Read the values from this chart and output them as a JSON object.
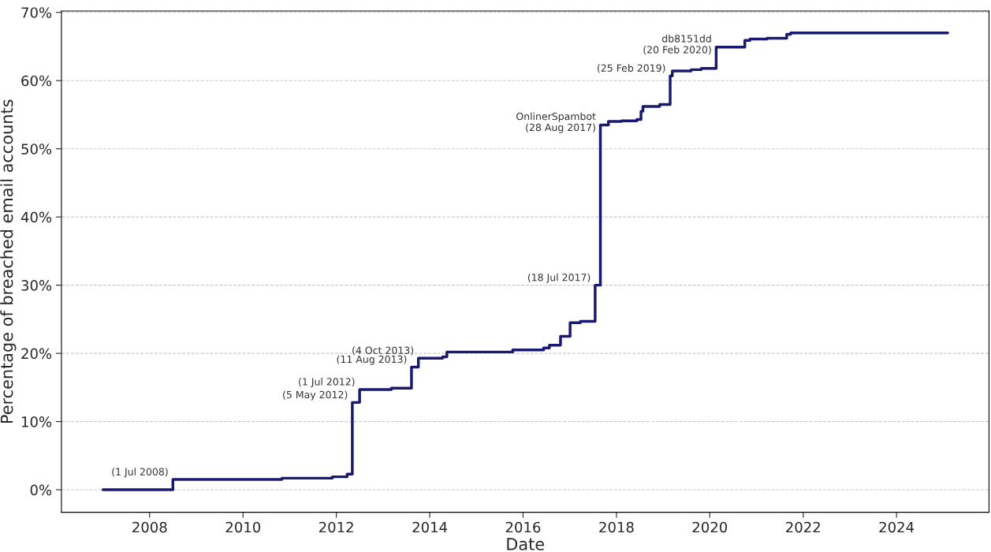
{
  "chart_data": {
    "type": "step",
    "xlabel": "Date",
    "ylabel": "Percentage of breached email accounts",
    "x": [
      "2007-01-01",
      "2008-07-01",
      "2010-11-01",
      "2011-12-01",
      "2012-03-25",
      "2012-05-05",
      "2012-07-01",
      "2013-03-07",
      "2013-08-11",
      "2013-10-04",
      "2014-04-12",
      "2014-05-15",
      "2015-10-12",
      "2016-06-10",
      "2016-07-25",
      "2016-10-20",
      "2017-01-03",
      "2017-03-25",
      "2017-07-18",
      "2017-08-28",
      "2017-10-30",
      "2018-02-10",
      "2018-06-10",
      "2018-07-12",
      "2018-07-27",
      "2018-12-05",
      "2019-02-25",
      "2019-03-14",
      "2019-08-08",
      "2019-10-27",
      "2020-02-20",
      "2020-10-01",
      "2020-11-10",
      "2021-03-25",
      "2021-08-25",
      "2021-09-25",
      "2025-02-05"
    ],
    "series": [
      {
        "color": "#191970",
        "values": [
          0,
          1.5,
          1.7,
          1.9,
          2.3,
          12.8,
          14.7,
          14.9,
          18.0,
          19.3,
          19.5,
          20.2,
          20.5,
          20.8,
          21.2,
          22.5,
          24.5,
          24.7,
          30.0,
          53.5,
          54.0,
          54.1,
          54.3,
          55.5,
          56.2,
          56.5,
          60.7,
          61.4,
          61.6,
          61.8,
          64.9,
          65.9,
          66.1,
          66.2,
          66.8,
          67.0,
          67.0
        ]
      }
    ],
    "annotations": [
      {
        "text": "(1 Jul 2008)",
        "x": "2008-07-01",
        "y": 1.5
      },
      {
        "text": "(5 May 2012)",
        "x": "2012-05-05",
        "y": 12.8
      },
      {
        "text": "(1 Jul 2012)",
        "x": "2012-07-01",
        "y": 14.7
      },
      {
        "text": "(11 Aug 2013)",
        "x": "2013-08-11",
        "y": 18.0
      },
      {
        "text": "(4 Oct 2013)",
        "x": "2013-10-04",
        "y": 19.3
      },
      {
        "text": "(18 Jul 2017)",
        "x": "2017-07-18",
        "y": 30.0
      },
      {
        "text": "OnlinerSpambot\n(28 Aug 2017)",
        "x": "2017-08-28",
        "y": 53.5
      },
      {
        "text": "(25 Feb 2019)",
        "x": "2019-02-25",
        "y": 60.7
      },
      {
        "text": "db8151dd\n(20 Feb 2020)",
        "x": "2020-02-20",
        "y": 64.9
      }
    ],
    "xlim": [
      "2006-02-10",
      "2025-12-25"
    ],
    "xticks": [
      "2008",
      "2010",
      "2012",
      "2014",
      "2016",
      "2018",
      "2020",
      "2022",
      "2024"
    ],
    "ylim": [
      -3.3,
      70.2
    ],
    "yticks": [
      {
        "value": 0,
        "label": "0%"
      },
      {
        "value": 10,
        "label": "10%"
      },
      {
        "value": 20,
        "label": "20%"
      },
      {
        "value": 30,
        "label": "30%"
      },
      {
        "value": 40,
        "label": "40%"
      },
      {
        "value": 50,
        "label": "50%"
      },
      {
        "value": 60,
        "label": "60%"
      },
      {
        "value": 70,
        "label": "70%"
      }
    ],
    "grid": "y",
    "legend": false,
    "line_style": "solid",
    "marker": "none"
  }
}
